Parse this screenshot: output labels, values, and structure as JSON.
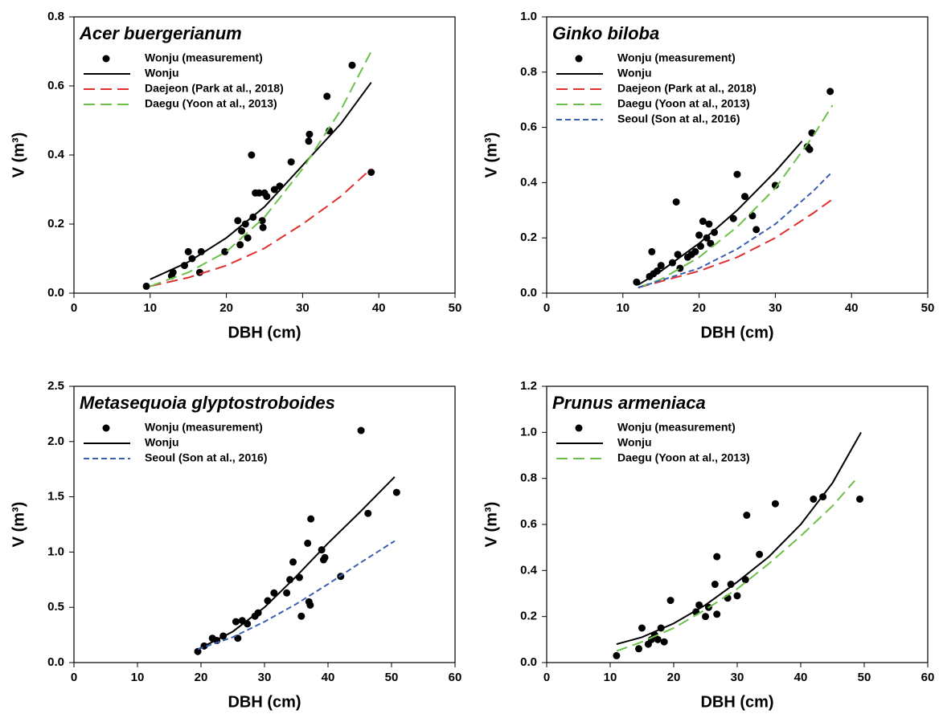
{
  "chart_data": [
    {
      "type": "scatter",
      "title": "Acer buergerianum",
      "xlabel": "DBH (cm)",
      "ylabel": "V (m³)",
      "xlim": [
        0,
        50
      ],
      "xticks": [
        0,
        10,
        20,
        30,
        40,
        50
      ],
      "ylim": [
        0,
        0.8
      ],
      "yticks": [
        {
          "value": 0,
          "label": "0.0"
        },
        0.2,
        0.4,
        0.6,
        0.8
      ],
      "series": [
        {
          "name": "Wonju (measurement)",
          "type": "scatter",
          "color": "#000000",
          "x": [
            9.5,
            12.8,
            13,
            14.5,
            15,
            15.5,
            16.5,
            16.7,
            19.8,
            21.5,
            21.8,
            22,
            22.5,
            22.8,
            23.3,
            23.5,
            23.8,
            24.3,
            24.7,
            24.8,
            25,
            25.3,
            26.3,
            27,
            28.5,
            30.8,
            30.9,
            33.2,
            33.5,
            36.5,
            39
          ],
          "values": [
            0.02,
            0.05,
            0.06,
            0.08,
            0.12,
            0.1,
            0.06,
            0.12,
            0.12,
            0.21,
            0.14,
            0.18,
            0.2,
            0.16,
            0.4,
            0.22,
            0.29,
            0.29,
            0.21,
            0.19,
            0.29,
            0.28,
            0.3,
            0.31,
            0.38,
            0.44,
            0.46,
            0.57,
            0.47,
            0.66,
            0.35
          ]
        },
        {
          "name": "Wonju",
          "type": "line",
          "dash": "solid",
          "color": "#000000",
          "x": [
            10,
            15,
            20,
            25,
            30,
            35,
            39
          ],
          "values": [
            0.04,
            0.09,
            0.16,
            0.25,
            0.37,
            0.49,
            0.61
          ]
        },
        {
          "name": "Daejeon (Park at al., 2018)",
          "type": "line",
          "dash": "long",
          "color": "#e03030",
          "x": [
            10,
            15,
            20,
            25,
            30,
            35,
            39
          ],
          "values": [
            0.02,
            0.045,
            0.08,
            0.13,
            0.2,
            0.28,
            0.36
          ]
        },
        {
          "name": "Daegu (Yoon at al., 2013)",
          "type": "line",
          "dash": "long",
          "color": "#6cc04a",
          "x": [
            10,
            15,
            20,
            25,
            30,
            35,
            39
          ],
          "values": [
            0.02,
            0.06,
            0.12,
            0.22,
            0.36,
            0.53,
            0.7
          ]
        }
      ]
    },
    {
      "type": "scatter",
      "title": "Ginko biloba",
      "xlabel": "DBH (cm)",
      "ylabel": "V (m³)",
      "xlim": [
        0,
        50
      ],
      "xticks": [
        0,
        10,
        20,
        30,
        40,
        50
      ],
      "ylim": [
        0,
        1
      ],
      "yticks": [
        {
          "value": 0,
          "label": "0.0"
        },
        0.2,
        0.4,
        0.6,
        0.8,
        {
          "value": 1,
          "label": "1.0"
        }
      ],
      "series": [
        {
          "name": "Wonju (measurement)",
          "type": "scatter",
          "color": "#000000",
          "x": [
            11.8,
            13.5,
            13.8,
            14,
            14.5,
            15,
            16.5,
            17,
            17.2,
            17.5,
            18.5,
            19,
            19.5,
            20,
            20.2,
            20.5,
            21,
            21.3,
            21.5,
            22,
            24.5,
            25,
            26,
            27,
            27.5,
            30,
            34.2,
            34.5,
            34.8,
            37.2
          ],
          "values": [
            0.04,
            0.06,
            0.15,
            0.07,
            0.08,
            0.1,
            0.11,
            0.33,
            0.14,
            0.09,
            0.13,
            0.14,
            0.15,
            0.21,
            0.17,
            0.26,
            0.2,
            0.25,
            0.18,
            0.22,
            0.27,
            0.43,
            0.35,
            0.28,
            0.23,
            0.39,
            0.53,
            0.52,
            0.58,
            0.73
          ]
        },
        {
          "name": "Wonju",
          "type": "line",
          "dash": "solid",
          "color": "#000000",
          "x": [
            12,
            15,
            20,
            25,
            30,
            33.5
          ],
          "values": [
            0.03,
            0.08,
            0.18,
            0.3,
            0.44,
            0.55
          ]
        },
        {
          "name": "Daejeon (Park at al., 2018)",
          "type": "line",
          "dash": "long",
          "color": "#e03030",
          "x": [
            12,
            20,
            25,
            30,
            35,
            37.5
          ],
          "values": [
            0.02,
            0.08,
            0.13,
            0.2,
            0.29,
            0.34
          ]
        },
        {
          "name": "Daegu (Yoon at al., 2013)",
          "type": "line",
          "dash": "long",
          "color": "#6cc04a",
          "x": [
            12,
            15,
            20,
            25,
            30,
            35,
            37.5
          ],
          "values": [
            0.02,
            0.05,
            0.13,
            0.24,
            0.38,
            0.57,
            0.68
          ]
        },
        {
          "name": "Seoul (Son at al., 2016)",
          "type": "line",
          "dash": "short",
          "color": "#3a5fb0",
          "x": [
            12,
            20,
            25,
            30,
            35,
            37.5
          ],
          "values": [
            0.02,
            0.09,
            0.16,
            0.25,
            0.37,
            0.44
          ]
        }
      ]
    },
    {
      "type": "scatter",
      "title": "Metasequoia glyptostroboides",
      "xlabel": "DBH (cm)",
      "ylabel": "V (m³)",
      "xlim": [
        0,
        60
      ],
      "xticks": [
        0,
        10,
        20,
        30,
        40,
        50,
        60
      ],
      "ylim": [
        0,
        2.5
      ],
      "yticks": [
        {
          "value": 0,
          "label": "0.0"
        },
        0.5,
        {
          "value": 1,
          "label": "1.0"
        },
        1.5,
        {
          "value": 2,
          "label": "2.0"
        },
        2.5
      ],
      "series": [
        {
          "name": "Wonju (measurement)",
          "type": "scatter",
          "color": "#000000",
          "x": [
            19.5,
            20.5,
            21.8,
            22.5,
            23.5,
            25.5,
            25.8,
            26.5,
            27.3,
            28.5,
            29,
            30.5,
            31.5,
            33.5,
            34,
            34.5,
            35.5,
            35.8,
            36.8,
            37,
            37.2,
            37.3,
            39,
            39.3,
            39.5,
            42,
            45.2,
            46.3,
            50.8
          ],
          "values": [
            0.1,
            0.15,
            0.22,
            0.2,
            0.24,
            0.37,
            0.22,
            0.38,
            0.35,
            0.42,
            0.45,
            0.56,
            0.63,
            0.63,
            0.75,
            0.91,
            0.77,
            0.42,
            1.08,
            0.55,
            0.52,
            1.3,
            1.02,
            0.93,
            0.95,
            0.78,
            2.1,
            1.35,
            1.54
          ]
        },
        {
          "name": "Wonju",
          "type": "line",
          "dash": "solid",
          "color": "#000000",
          "x": [
            19.5,
            25,
            30,
            35,
            40,
            45,
            50.5
          ],
          "values": [
            0.12,
            0.28,
            0.5,
            0.78,
            1.08,
            1.36,
            1.68
          ]
        },
        {
          "name": "Seoul (Son at al., 2016)",
          "type": "line",
          "dash": "short",
          "color": "#3a5fb0",
          "x": [
            19.5,
            25,
            30,
            35,
            40,
            45,
            50.5
          ],
          "values": [
            0.12,
            0.23,
            0.37,
            0.53,
            0.71,
            0.9,
            1.1
          ]
        }
      ]
    },
    {
      "type": "scatter",
      "title": "Prunus armeniaca",
      "xlabel": "DBH (cm)",
      "ylabel": "V (m³)",
      "xlim": [
        0,
        60
      ],
      "xticks": [
        0,
        10,
        20,
        30,
        40,
        50,
        60
      ],
      "ylim": [
        0,
        1.2
      ],
      "yticks": [
        {
          "value": 0,
          "label": "0.0"
        },
        0.2,
        0.4,
        0.6,
        0.8,
        {
          "value": 1,
          "label": "1.0"
        },
        1.2
      ],
      "series": [
        {
          "name": "Wonju (measurement)",
          "type": "scatter",
          "color": "#000000",
          "x": [
            11,
            14.5,
            15,
            16,
            16.5,
            17,
            17.5,
            18,
            18.5,
            19.5,
            23.5,
            24,
            25,
            25.5,
            26.5,
            26.8,
            26.8,
            28.5,
            29,
            30,
            31.3,
            31.5,
            33.5,
            36,
            42,
            43.5,
            49.3
          ],
          "values": [
            0.03,
            0.06,
            0.15,
            0.08,
            0.1,
            0.12,
            0.1,
            0.15,
            0.09,
            0.27,
            0.22,
            0.25,
            0.2,
            0.24,
            0.34,
            0.46,
            0.21,
            0.28,
            0.34,
            0.29,
            0.36,
            0.64,
            0.47,
            0.69,
            0.71,
            0.72,
            0.71
          ]
        },
        {
          "name": "Wonju",
          "type": "line",
          "dash": "solid",
          "color": "#000000",
          "x": [
            11,
            15,
            20,
            25,
            30,
            35,
            40,
            45,
            49.5
          ],
          "values": [
            0.08,
            0.11,
            0.17,
            0.25,
            0.35,
            0.46,
            0.6,
            0.78,
            1.0
          ]
        },
        {
          "name": "Daegu (Yoon at al., 2013)",
          "type": "line",
          "dash": "long",
          "color": "#6cc04a",
          "x": [
            11,
            15,
            20,
            25,
            30,
            35,
            40,
            45,
            48.5
          ],
          "values": [
            0.05,
            0.09,
            0.15,
            0.23,
            0.32,
            0.43,
            0.55,
            0.68,
            0.79
          ]
        }
      ]
    }
  ]
}
